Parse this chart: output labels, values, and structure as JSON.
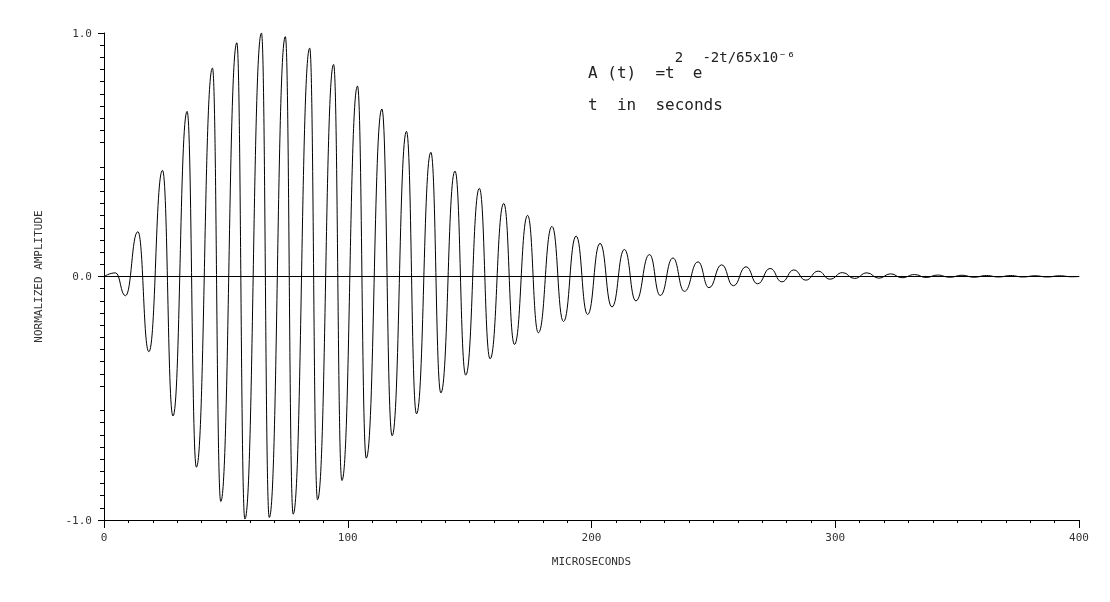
{
  "chart_data": {
    "type": "line",
    "xlabel": "MICROSECONDS",
    "ylabel": "NORMALIZED AMPLITUDE",
    "annotations": [
      "A (t)  =t$^{2}$ e$^{-2t/65x10⁻⁶}$",
      "t  in  seconds"
    ],
    "x": [
      0,
      4.7,
      8.8,
      13.9,
      18.4,
      24.0,
      28.3,
      34.1,
      37.9,
      44.5,
      47.9,
      54.5,
      57.8,
      64.6,
      67.8,
      74.4,
      77.6,
      84.4,
      87.6,
      94.2,
      97.6,
      104,
      107.6,
      114,
      118.2,
      124.1,
      128.2,
      134.1,
      138.2,
      144,
      148.4,
      154,
      158.4,
      164,
      168.4,
      173.8,
      178.2,
      183.8,
      188.5,
      193.7,
      198.4,
      203.5,
      208.4,
      213.5,
      218.2,
      223.8,
      228.2,
      233.4,
      238.1,
      243.7,
      248.2,
      253.4,
      258.2,
      263.4,
      268.1,
      273.3,
      278.1,
      283,
      287.9,
      293,
      297.8,
      303,
      307.9,
      313,
      317.9,
      322.7,
      327.4,
      332.5,
      337.3,
      342,
      347,
      352,
      357,
      362,
      367,
      372,
      377,
      382,
      387,
      392,
      397,
      400
    ],
    "series": [
      {
        "color": "#000000",
        "values": [
          0,
          0.015,
          -0.079,
          0.184,
          -0.309,
          0.436,
          -0.573,
          0.678,
          -0.783,
          0.856,
          -0.924,
          0.96,
          -0.996,
          1.0,
          -0.99,
          0.985,
          -0.976,
          0.938,
          -0.917,
          0.871,
          -0.838,
          0.782,
          -0.746,
          0.688,
          -0.654,
          0.596,
          -0.564,
          0.51,
          -0.478,
          0.433,
          -0.405,
          0.362,
          -0.338,
          0.3,
          -0.279,
          0.251,
          -0.231,
          0.206,
          -0.185,
          0.166,
          -0.156,
          0.136,
          -0.125,
          0.111,
          -0.1,
          0.09,
          -0.078,
          0.076,
          -0.061,
          0.06,
          -0.046,
          0.048,
          -0.038,
          0.04,
          -0.03,
          0.033,
          -0.022,
          0.027,
          -0.015,
          0.022,
          -0.011,
          0.016,
          -0.008,
          0.015,
          -0.007,
          0.011,
          -0.005,
          0.008,
          -0.004,
          0.006,
          -0.003,
          0.005,
          -0.003,
          0.004,
          -0.002,
          0.004,
          -0.002,
          0.003,
          -0.002,
          0.003,
          -0.001,
          0
        ]
      }
    ],
    "xlim": [
      0,
      400
    ],
    "xticks": [
      0,
      100,
      200,
      300,
      400
    ],
    "ylim": [
      -1,
      1
    ],
    "yticks": [
      {
        "value": -1,
        "label": "-1.0"
      },
      {
        "value": 0,
        "label": "0.0"
      },
      {
        "value": 1,
        "label": "1.0"
      }
    ],
    "ref_lines": [
      {
        "axis": "y",
        "value": 0,
        "color": "#000000"
      }
    ],
    "grid": false,
    "marker": "none",
    "line_style": "solid"
  }
}
